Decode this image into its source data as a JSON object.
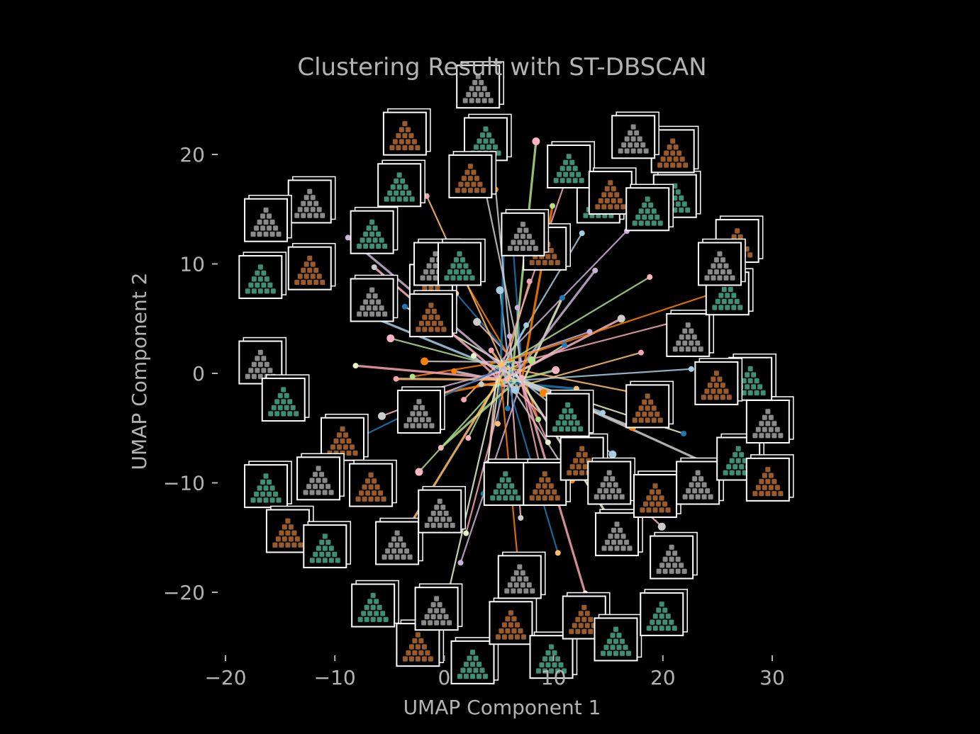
{
  "chart_data": {
    "type": "scatter",
    "title": "Clustering Result with ST-DBSCAN",
    "xlabel": "UMAP Component 1",
    "ylabel": "UMAP Component 2",
    "xlim": [
      -20.5,
      32
    ],
    "ylim": [
      -26,
      26.5
    ],
    "xticks": [
      -20,
      -10,
      0,
      10,
      20,
      30
    ],
    "yticks": [
      -20,
      -10,
      0,
      10,
      20
    ],
    "xtick_labels": [
      "−20",
      "−10",
      "0",
      "10",
      "20",
      "30"
    ],
    "ytick_labels": [
      "−20",
      "−10",
      "0",
      "10",
      "20"
    ],
    "grid": false,
    "legend": "none",
    "background": "#000000",
    "text_color": "#b3b3b3",
    "palette": [
      "#a6cee3",
      "#1f78b4",
      "#b2df8a",
      "#fdbf6f",
      "#ff7f00",
      "#cab2d6",
      "#fbb4c4",
      "#e6f5c9",
      "#cccccc",
      "#f4a4b4"
    ],
    "thumbnail_colors": [
      "#3f8f74",
      "#9a5a2a",
      "#8a8a8a"
    ],
    "center": [
      6,
      0
    ],
    "points": [
      [
        6.5,
        -1.5
      ],
      [
        5.2,
        0.8
      ],
      [
        7.1,
        -0.4
      ],
      [
        4.3,
        2.1
      ],
      [
        8.0,
        1.2
      ],
      [
        6.0,
        3.4
      ],
      [
        3.4,
        -1.0
      ],
      [
        5.8,
        -3.2
      ],
      [
        9.1,
        -1.8
      ],
      [
        2.7,
        1.6
      ],
      [
        7.5,
        4.4
      ],
      [
        4.9,
        -4.6
      ],
      [
        10.2,
        0.3
      ],
      [
        1.8,
        -2.4
      ],
      [
        8.6,
        -4.2
      ],
      [
        6.7,
        6.0
      ],
      [
        3.0,
        4.7
      ],
      [
        11.0,
        2.6
      ],
      [
        0.9,
        0.2
      ],
      [
        9.5,
        -6.3
      ],
      [
        5.1,
        7.6
      ],
      [
        12.1,
        -1.4
      ],
      [
        2.2,
        -5.9
      ],
      [
        7.8,
        8.4
      ],
      [
        -0.6,
        -1.9
      ],
      [
        13.3,
        3.8
      ],
      [
        4.0,
        -8.2
      ],
      [
        10.8,
        6.9
      ],
      [
        -1.8,
        1.1
      ],
      [
        8.9,
        -9.1
      ],
      [
        14.5,
        -3.6
      ],
      [
        1.1,
        7.3
      ],
      [
        -4.9,
        3.2
      ],
      [
        -4.4,
        -0.5
      ],
      [
        -2.9,
        -0.3
      ],
      [
        -1.2,
        -1.5
      ],
      [
        16.2,
        5.0
      ],
      [
        3.6,
        -11.0
      ],
      [
        11.7,
        -9.8
      ],
      [
        -8.1,
        0.7
      ],
      [
        15.4,
        -7.4
      ],
      [
        6.3,
        11.5
      ],
      [
        -0.3,
        -6.8
      ],
      [
        18.0,
        1.9
      ],
      [
        0.4,
        11.0
      ],
      [
        13.8,
        9.4
      ],
      [
        7.0,
        -13.2
      ],
      [
        -3.6,
        6.1
      ],
      [
        17.2,
        -4.9
      ],
      [
        2.0,
        -14.6
      ],
      [
        12.6,
        12.8
      ],
      [
        5.5,
        13.7
      ],
      [
        -2.3,
        -9.0
      ],
      [
        19.6,
        -2.2
      ],
      [
        9.9,
        15.3
      ],
      [
        1.5,
        -17.3
      ],
      [
        -5.7,
        -3.9
      ],
      [
        14.9,
        -12.9
      ],
      [
        4.7,
        16.8
      ],
      [
        20.7,
        4.6
      ],
      [
        -7.2,
        5.4
      ],
      [
        10.4,
        -16.4
      ],
      [
        18.8,
        8.8
      ],
      [
        -3.0,
        -13.6
      ],
      [
        6.9,
        -19.0
      ],
      [
        16.7,
        13.0
      ],
      [
        -6.4,
        9.7
      ],
      [
        21.9,
        -5.5
      ],
      [
        3.2,
        19.4
      ],
      [
        12.9,
        -20.1
      ],
      [
        22.6,
        0.4
      ],
      [
        -9.3,
        -6.6
      ],
      [
        8.4,
        21.2
      ],
      [
        -1.6,
        16.2
      ],
      [
        24.3,
        7.2
      ],
      [
        -8.8,
        12.4
      ],
      [
        19.9,
        -14.0
      ],
      [
        0.2,
        -20.8
      ],
      [
        25.5,
        -8.9
      ],
      [
        11.3,
        18.2
      ]
    ],
    "thumbnails": [
      [
        -16.8,
        8.8
      ],
      [
        -12.3,
        9.6
      ],
      [
        -12.3,
        15.7
      ],
      [
        -4.1,
        17.2
      ],
      [
        -3.6,
        21.9
      ],
      [
        3.1,
        26.2
      ],
      [
        3.8,
        21.4
      ],
      [
        2.4,
        18.0
      ],
      [
        -16.8,
        1.0
      ],
      [
        -14.7,
        -2.4
      ],
      [
        -9.3,
        -6.0
      ],
      [
        -6.6,
        6.7
      ],
      [
        -6.6,
        12.9
      ],
      [
        -1.2,
        8.0
      ],
      [
        -0.8,
        10.0
      ],
      [
        1.4,
        10.0
      ],
      [
        -1.2,
        5.3
      ],
      [
        -2.3,
        -3.5
      ],
      [
        -16.3,
        -10.3
      ],
      [
        -14.3,
        -14.4
      ],
      [
        -11.5,
        -9.6
      ],
      [
        -10.9,
        -15.8
      ],
      [
        -6.7,
        -10.2
      ],
      [
        -4.3,
        -15.5
      ],
      [
        -6.5,
        -21.2
      ],
      [
        -2.4,
        -24.8
      ],
      [
        -0.7,
        -21.5
      ],
      [
        2.6,
        -26.4
      ],
      [
        6.1,
        -22.8
      ],
      [
        -0.4,
        -12.6
      ],
      [
        5.6,
        -10.1
      ],
      [
        9.2,
        -10.1
      ],
      [
        6.9,
        -18.6
      ],
      [
        9.8,
        -25.9
      ],
      [
        12.8,
        -22.3
      ],
      [
        15.8,
        -14.7
      ],
      [
        15.7,
        -24.3
      ],
      [
        12.6,
        -7.8
      ],
      [
        15.1,
        -10.0
      ],
      [
        11.3,
        -3.8
      ],
      [
        18.6,
        -3.0
      ],
      [
        20.8,
        -16.8
      ],
      [
        19.9,
        -22.0
      ],
      [
        19.3,
        -11.2
      ],
      [
        23.2,
        -10.0
      ],
      [
        26.9,
        -7.8
      ],
      [
        29.6,
        -9.7
      ],
      [
        29.6,
        -4.4
      ],
      [
        28.0,
        -0.5
      ],
      [
        24.9,
        -0.9
      ],
      [
        22.3,
        3.5
      ],
      [
        25.9,
        7.3
      ],
      [
        26.8,
        12.1
      ],
      [
        25.2,
        10.0
      ],
      [
        21.1,
        16.2
      ],
      [
        20.9,
        20.3
      ],
      [
        17.3,
        21.6
      ],
      [
        14.1,
        15.7
      ],
      [
        9.2,
        11.4
      ],
      [
        7.2,
        12.7
      ],
      [
        11.4,
        18.9
      ],
      [
        15.2,
        16.5
      ],
      [
        -16.3,
        14.0
      ],
      [
        18.6,
        15.0
      ]
    ]
  }
}
